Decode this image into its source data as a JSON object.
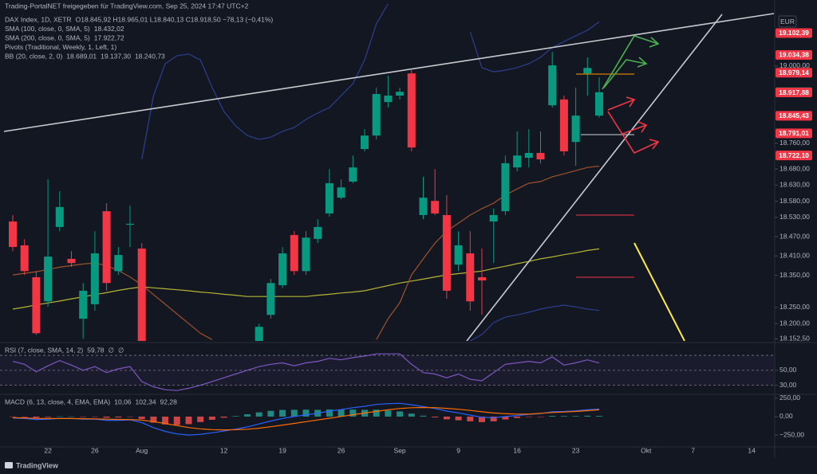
{
  "header": {
    "source": "Trading-PortalNET freigegeben für TradingView.com, Sep 25, 2024 17:47 UTC+2",
    "rows": [
      [
        {
          "text": "DAX Index, 1D, XETR",
          "color": "#b2b5be"
        },
        {
          "text": "O18.845,92 H18.965,01 L18.840,13 C18.918,50 −78,13 (−0,41%)",
          "color": "#f23645"
        }
      ],
      [
        {
          "text": "SMA (100, close, 0, SMA, 5)",
          "color": "#b2b5be"
        },
        {
          "text": "18.432,02",
          "color": "#e6e64c"
        }
      ],
      [
        {
          "text": "SMA (200, close, 0, SMA, 5)",
          "color": "#b2b5be"
        },
        {
          "text": "17.922,72",
          "color": "#e6e64c"
        }
      ],
      [
        {
          "text": "Pivots (Traditional, Weekly, 1, Left, 1)",
          "color": "#b2b5be"
        }
      ],
      [
        {
          "text": "BB (20, close, 2, 0)",
          "color": "#b2b5be"
        },
        {
          "text": "18.689,01",
          "color": "#ff6d00"
        },
        {
          "text": "19.137,30",
          "color": "#2962ff"
        },
        {
          "text": "18.240,73",
          "color": "#2962ff"
        }
      ]
    ],
    "currency": "EUR",
    "logo": "TradingView"
  },
  "chart_data": [
    {
      "type": "candlestick",
      "categories": [
        null,
        null,
        null,
        "22",
        null,
        null,
        null,
        "26",
        null,
        null,
        null,
        "Aug",
        null,
        null,
        null,
        null,
        null,
        null,
        "12",
        null,
        null,
        null,
        null,
        "19",
        null,
        null,
        null,
        null,
        "26",
        null,
        null,
        null,
        null,
        "Sep",
        null,
        null,
        null,
        null,
        "9",
        null,
        null,
        null,
        null,
        "16",
        null,
        null,
        null,
        null,
        "23",
        null,
        null,
        null,
        null,
        null,
        "Okt",
        null,
        null,
        null,
        "7",
        null,
        null,
        null,
        null,
        "14",
        null
      ],
      "open": [
        18517,
        18443,
        18344,
        18269,
        18500,
        18401,
        18215,
        18260,
        18549,
        18363,
        18507,
        18433,
        null,
        null,
        null,
        null,
        null,
        null,
        null,
        null,
        null,
        18100,
        18227,
        18319,
        18475,
        18363,
        18463,
        18542,
        18591,
        18641,
        18742,
        18784,
        18888,
        18908,
        18977,
        18537,
        18581,
        18537,
        18383,
        18418,
        18344,
        18517,
        18549,
        18685,
        18715,
        18730,
        18878,
        18896,
        18764,
        18977,
        18845.92,
        null,
        null,
        null,
        null,
        null,
        null,
        null,
        null,
        null,
        null,
        null,
        null,
        null,
        null
      ],
      "high": [
        18537,
        18462,
        18363,
        18648,
        18611,
        18425,
        18326,
        18487,
        18574,
        18438,
        18566,
        18450,
        null,
        null,
        null,
        null,
        null,
        null,
        null,
        null,
        null,
        18200,
        18339,
        18438,
        18487,
        18487,
        18524,
        18680,
        18648,
        18722,
        18804,
        18933,
        18970,
        18933,
        18987,
        18656,
        18680,
        18599,
        18487,
        18487,
        18433,
        18557,
        18722,
        18797,
        18804,
        18797,
        19044,
        18908,
        18933,
        19027,
        18965.01,
        null,
        null,
        null,
        null,
        null,
        null,
        null,
        null,
        null,
        null,
        null,
        null,
        null,
        null
      ],
      "low": [
        18425,
        18351,
        18165,
        18252,
        18487,
        18376,
        18153,
        18240,
        18302,
        18351,
        18438,
        18080,
        null,
        null,
        null,
        null,
        null,
        null,
        null,
        null,
        null,
        18090,
        18215,
        18310,
        18351,
        18351,
        18450,
        18532,
        18586,
        18636,
        18735,
        18772,
        18871,
        18896,
        18735,
        18524,
        18537,
        18277,
        18363,
        18240,
        18227,
        18388,
        18537,
        18673,
        18685,
        18698,
        18871,
        18722,
        18690,
        18908,
        18840.13,
        null,
        null,
        null,
        null,
        null,
        null,
        null,
        null,
        null,
        null,
        null,
        null,
        null,
        null
      ],
      "close": [
        18438,
        18363,
        18170,
        18408,
        18562,
        18388,
        18302,
        18418,
        18326,
        18413,
        18510,
        18100,
        null,
        null,
        null,
        null,
        null,
        null,
        null,
        null,
        null,
        18190,
        18326,
        18418,
        18363,
        18467,
        18500,
        18636,
        18623,
        18685,
        18784,
        18913,
        18908,
        18920,
        18747,
        18591,
        18542,
        18302,
        18443,
        18269,
        18334,
        18537,
        18698,
        18722,
        18730,
        18710,
        19002,
        18735,
        18846,
        18994,
        18918.5,
        null,
        null,
        null,
        null,
        null,
        null,
        null,
        null,
        null,
        null,
        null,
        null,
        null,
        null
      ],
      "up_color": "#089981",
      "down_color": "#f23645",
      "overlays": [
        {
          "color": "#b5b534",
          "values": [
            18245,
            18251,
            18258,
            18264,
            18270,
            18277,
            18283,
            18290,
            18296,
            18303,
            18309,
            18314,
            18311,
            18308,
            18305,
            18302,
            18298,
            18295,
            18291,
            18288,
            18284,
            18284,
            18284,
            18284,
            18284,
            18284,
            18288,
            18291,
            18295,
            18298,
            18302,
            18310,
            18318,
            18326,
            18332,
            18338,
            18345,
            18351,
            18355,
            18359,
            18363,
            18371,
            18378,
            18386,
            18393,
            18401,
            18407,
            18414,
            18420,
            18427,
            18432.02,
            null,
            null,
            null,
            null,
            null,
            null,
            null,
            null,
            null,
            null,
            null,
            null,
            null,
            null
          ]
        },
        {
          "color": "#a0522d",
          "values": [
            18351,
            18356,
            18361,
            18368,
            18375,
            18380,
            18385,
            18388,
            18380,
            18365,
            18345,
            18320,
            18290,
            18260,
            18230,
            18200,
            18170,
            18150,
            null,
            null,
            null,
            null,
            null,
            null,
            null,
            null,
            null,
            null,
            null,
            null,
            null,
            18150,
            18215,
            18265,
            18351,
            18401,
            18450,
            18487,
            18512,
            18537,
            18557,
            18574,
            18599,
            18618,
            18636,
            18641,
            18656,
            18665,
            18675,
            18685,
            18689.01,
            null,
            null,
            null,
            null,
            null,
            null,
            null,
            null,
            null,
            null,
            null,
            null,
            null,
            null
          ]
        },
        {
          "color": "#2e3f8f",
          "values": [
            null,
            null,
            null,
            null,
            null,
            null,
            null,
            null,
            null,
            null,
            null,
            18710,
            18908,
            19007,
            19032,
            19037,
            19019,
            18933,
            18859,
            18814,
            18784,
            18772,
            18779,
            18797,
            18809,
            18834,
            18854,
            18871,
            18908,
            18945,
            19019,
            19131,
            19193,
            null,
            null,
            null,
            null,
            null,
            null,
            19106,
            18995,
            18982,
            18987,
            18995,
            19007,
            19027,
            19057,
            19076,
            19094,
            19111,
            19137.3,
            null,
            null,
            null,
            null,
            null,
            null,
            null,
            null,
            null,
            null,
            null,
            null,
            null,
            null
          ]
        },
        {
          "color": "#2e3f8f",
          "values": [
            null,
            null,
            null,
            null,
            null,
            null,
            null,
            null,
            null,
            null,
            null,
            null,
            null,
            null,
            null,
            null,
            null,
            null,
            null,
            null,
            null,
            null,
            null,
            null,
            null,
            null,
            null,
            null,
            null,
            null,
            null,
            null,
            null,
            null,
            null,
            null,
            null,
            null,
            null,
            18146,
            18166,
            18203,
            18220,
            18227,
            18235,
            18245,
            18252,
            18257,
            18252,
            18245,
            18240.73,
            null,
            null,
            null,
            null,
            null,
            null,
            null,
            null,
            null,
            null,
            null,
            null,
            null,
            null
          ]
        }
      ],
      "ylim": [
        18146,
        19205
      ],
      "yticks": [
        {
          "value": 18152.5,
          "label": "18.152,50"
        },
        {
          "value": 18200,
          "label": "18.200,00"
        },
        {
          "value": 18250,
          "label": "18.250,00"
        },
        {
          "value": 18350,
          "label": "18.350,00"
        },
        {
          "value": 18410,
          "label": "18.410,00"
        },
        {
          "value": 18470,
          "label": "18.470,00"
        },
        {
          "value": 18530,
          "label": "18.530,00"
        },
        {
          "value": 18580,
          "label": "18.580,00"
        },
        {
          "value": 18630,
          "label": "18.630,00"
        },
        {
          "value": 18680,
          "label": "18.680,00"
        },
        {
          "value": 18760,
          "label": "18.760,00"
        },
        {
          "value": 19000,
          "label": "19.000,00"
        }
      ],
      "price_tags": [
        {
          "value": 19102.39,
          "label": "19.102,39",
          "color": "#f23645"
        },
        {
          "value": 19034.38,
          "label": "19.034,38",
          "color": "#f23645"
        },
        {
          "value": 18979.14,
          "label": "18.979,14",
          "color": "#f23645"
        },
        {
          "value": 18918.5,
          "label": "18.918,50",
          "color": "#089981"
        },
        {
          "value": 18917.88,
          "label": "18.917,88",
          "color": "#f23645"
        },
        {
          "value": 18845.43,
          "label": "18.845,43",
          "color": "#f23645"
        },
        {
          "value": 18791.01,
          "label": "18.791,01",
          "color": "#f23645"
        },
        {
          "value": 18722.1,
          "label": "18.722,10",
          "color": "#f23645"
        }
      ],
      "grid": false
    },
    {
      "type": "line",
      "label": [
        {
          "text": "RSI (7, close, SMA, 14, 2)",
          "color": "#b2b5be"
        },
        {
          "text": "59,78",
          "color": "#7e57c2"
        },
        {
          "text": "∅",
          "color": "#b2b5be"
        },
        {
          "text": "∅",
          "color": "#b2b5be"
        }
      ],
      "series": [
        {
          "color": "#7e57c2",
          "values": [
            62,
            58,
            48,
            56,
            63,
            57,
            50,
            55,
            47,
            52,
            55,
            35,
            28,
            24,
            23,
            26,
            30,
            35,
            40,
            45,
            50,
            55,
            58,
            60,
            56,
            60,
            62,
            66,
            64,
            67,
            69,
            72,
            72,
            72,
            58,
            47,
            45,
            40,
            45,
            38,
            36,
            47,
            58,
            60,
            62,
            60,
            68,
            57,
            60,
            64,
            59.78,
            null,
            null,
            null,
            null,
            null,
            null,
            null,
            null,
            null,
            null,
            null,
            null,
            null,
            null
          ]
        }
      ],
      "bands": [
        70,
        50,
        30
      ],
      "ylim": [
        20,
        85
      ],
      "yticks": [
        {
          "value": 50,
          "label": "50,00"
        },
        {
          "value": 30,
          "label": "30,00"
        }
      ]
    },
    {
      "type": "macd",
      "label": [
        {
          "text": "MACD (6, 13, close, 4, EMA, EMA)",
          "color": "#b2b5be"
        },
        {
          "text": "10,06",
          "color": "#d1d4dc"
        },
        {
          "text": "102,34",
          "color": "#2962ff"
        },
        {
          "text": "92,28",
          "color": "#ff6d00"
        }
      ],
      "histogram": {
        "up_color": "#26a69a",
        "down_color": "#ff5252",
        "values": [
          -5,
          -7,
          -16,
          -8,
          2,
          2,
          -6,
          -4,
          -15,
          -12,
          -5,
          -32,
          -82,
          -106,
          -113,
          -102,
          -74,
          -43,
          -15,
          8,
          31,
          57,
          78,
          90,
          92,
          94,
          91,
          97,
          94,
          95,
          92,
          94,
          83,
          70,
          40,
          12,
          -11,
          -37,
          -50,
          -64,
          -75,
          -64,
          -39,
          -19,
          -3,
          -5,
          10,
          8,
          8,
          12,
          10.06,
          null,
          null,
          null,
          null,
          null,
          null,
          null,
          null,
          null,
          null,
          null,
          null,
          null,
          null
        ]
      },
      "series": [
        {
          "color": "#2962ff",
          "values": [
            -20,
            -25,
            -40,
            -35,
            -25,
            -25,
            -35,
            -35,
            -50,
            -50,
            -45,
            -80,
            -150,
            -200,
            -235,
            -250,
            -240,
            -220,
            -195,
            -170,
            -140,
            -100,
            -60,
            -25,
            0,
            25,
            45,
            75,
            95,
            120,
            140,
            165,
            175,
            180,
            160,
            135,
            110,
            75,
            50,
            20,
            -10,
            -15,
            0,
            15,
            30,
            40,
            65,
            70,
            78,
            92,
            102.34,
            null,
            null,
            null,
            null,
            null,
            null,
            null,
            null,
            null,
            null,
            null,
            null,
            null,
            null
          ]
        },
        {
          "color": "#ff6d00",
          "values": [
            -15,
            -18,
            -24,
            -27,
            -27,
            -27,
            -29,
            -31,
            -35,
            -38,
            -40,
            -48,
            -68,
            -94,
            -122,
            -148,
            -166,
            -177,
            -180,
            -178,
            -171,
            -157,
            -138,
            -115,
            -92,
            -69,
            -46,
            -22,
            1,
            25,
            48,
            71,
            92,
            110,
            120,
            123,
            121,
            112,
            100,
            84,
            65,
            49,
            39,
            34,
            33,
            45,
            55,
            62,
            70,
            80,
            92.28,
            null,
            null,
            null,
            null,
            null,
            null,
            null,
            null,
            null,
            null,
            null,
            null,
            null,
            null
          ]
        }
      ],
      "ylim": [
        -400,
        280
      ],
      "yticks": [
        {
          "value": 250,
          "label": "250,00"
        },
        {
          "value": 0,
          "label": "0,00"
        },
        {
          "value": -250,
          "label": "−250,00"
        }
      ]
    }
  ]
}
